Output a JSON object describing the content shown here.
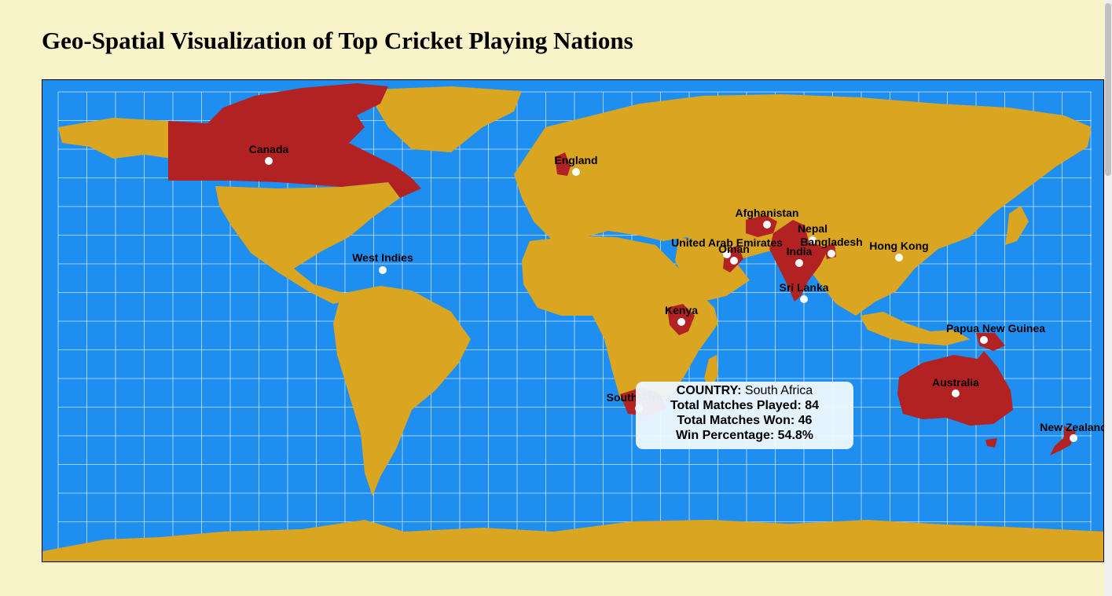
{
  "title": "Geo-Spatial Visualization of Top Cricket Playing Nations",
  "colors": {
    "ocean": "#1e8ff0",
    "land": "#daa520",
    "highlight": "#b22222",
    "graticule": "#ffffff",
    "background": "#f8f3c8"
  },
  "countries": [
    {
      "name": "Canada"
    },
    {
      "name": "England"
    },
    {
      "name": "West Indies"
    },
    {
      "name": "Afghanistan"
    },
    {
      "name": "Nepal"
    },
    {
      "name": "United Arab Emirates"
    },
    {
      "name": "Oman"
    },
    {
      "name": "India"
    },
    {
      "name": "Bangladesh"
    },
    {
      "name": "Hong Kong"
    },
    {
      "name": "Sri Lanka"
    },
    {
      "name": "Kenya"
    },
    {
      "name": "Papua New Guinea"
    },
    {
      "name": "Australia"
    },
    {
      "name": "South Africa"
    },
    {
      "name": "New Zealand"
    }
  ],
  "tooltip": {
    "country_label": "COUNTRY:",
    "country": "South Africa",
    "played_label": "Total Matches Played:",
    "played": "84",
    "won_label": "Total Matches Won:",
    "won": "46",
    "pct_label": "Win Percentage:",
    "pct": "54.8%"
  }
}
